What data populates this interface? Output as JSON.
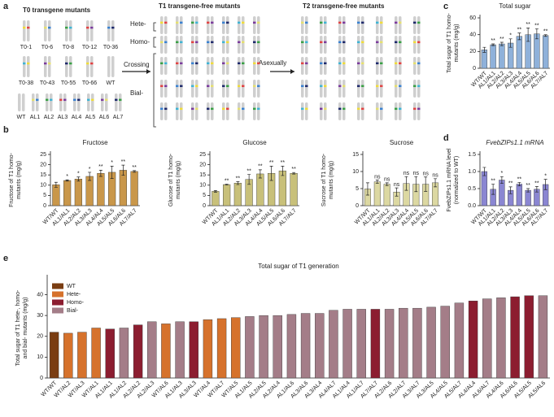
{
  "diagram": {
    "panel_label": "a",
    "headings": [
      "T0 transgene mutants",
      "T1 transgene-free mutants",
      "T2 transgene-free mutants"
    ],
    "t0_labels": [
      "T0-1",
      "T0-6",
      "T0-8",
      "T0-12",
      "T0-36",
      "T0-38",
      "T0-43",
      "T0-55",
      "T0-66",
      "WT"
    ],
    "line_labels": [
      "WT",
      "AL1",
      "AL2",
      "AL3",
      "AL4",
      "AL5",
      "AL6",
      "AL7"
    ],
    "arrows": [
      "Crossing",
      "Asexually"
    ],
    "groups": [
      "Hete-",
      "Homo-",
      "Bial-"
    ]
  },
  "chart_data": [
    {
      "type": "bar",
      "panel_label": "b",
      "title": "Fructose",
      "y_label": [
        "Fructose of T1 homo-",
        "mutants (mg/g)"
      ],
      "color": "#c9974a",
      "categories": [
        "WT/WT",
        "AL1/AL1",
        "AL2/AL2",
        "AL3/AL3",
        "AL4/AL4",
        "AL5/AL5",
        "AL6/AL6",
        "AL7/AL7"
      ],
      "values": [
        10.2,
        12.3,
        13,
        14.3,
        15.8,
        16.3,
        17.3,
        16.7
      ],
      "errors": [
        1.2,
        0.3,
        1,
        2,
        1.5,
        3,
        2.5,
        0.4
      ],
      "significance": [
        null,
        "*",
        "*",
        "*",
        "**",
        "*",
        "**",
        "**"
      ],
      "ylim": [
        0,
        25
      ],
      "yticks": [
        0,
        5,
        10,
        15,
        20,
        25
      ]
    },
    {
      "type": "bar",
      "panel_label": null,
      "title": "Glucose",
      "y_label": [
        "Glucose of T1 homo-",
        "mutants (mg/g)"
      ],
      "color": "#c8c07a",
      "categories": [
        "WT/WT",
        "AL1/AL1",
        "AL2/AL2",
        "AL3/AL3",
        "AL4/AL4",
        "AL5/AL5",
        "AL6/AL6",
        "AL7/AL7"
      ],
      "values": [
        7,
        10.3,
        11,
        12.8,
        15.5,
        15.8,
        17,
        15.8
      ],
      "errors": [
        0.4,
        0.2,
        0.7,
        2.4,
        2,
        3.5,
        2.3,
        0.4
      ],
      "significance": [
        null,
        "**",
        "**",
        "**",
        "**",
        "**",
        "**",
        "**"
      ],
      "ylim": [
        0,
        25
      ],
      "yticks": [
        0,
        5,
        10,
        15,
        20,
        25
      ]
    },
    {
      "type": "bar",
      "panel_label": null,
      "title": "Sucrose",
      "y_label": [
        "Sucrose of T1 homo-",
        "mutants (mg/g)"
      ],
      "color": "#dcd8a2",
      "categories": [
        "WT/WT",
        "AL1/AL1",
        "AL2/AL2",
        "AL3/AL3",
        "AL4/AL4",
        "AL5/AL5",
        "AL6/AL6",
        "AL7/AL7"
      ],
      "values": [
        4.9,
        7,
        6.3,
        4,
        6.5,
        6.3,
        6.3,
        6.7
      ],
      "errors": [
        1.8,
        0.5,
        0.4,
        1.2,
        2,
        2.2,
        2.1,
        1.2
      ],
      "significance": [
        null,
        "ns",
        "ns",
        "ns",
        "ns",
        "ns",
        "ns",
        "ns"
      ],
      "ylim": [
        0,
        15
      ],
      "yticks": [
        0,
        5,
        10,
        15
      ]
    },
    {
      "type": "bar",
      "panel_label": "c",
      "title": "Total sugar",
      "y_label": [
        "Total sugar of T1 homo-",
        "mutants (mg/g)"
      ],
      "color": "#8fb1da",
      "categories": [
        "WT/WT",
        "AL1/AL1",
        "AL2/AL2",
        "AL3/AL3",
        "AL4/AL4",
        "AL5/AL5",
        "AL6/AL6",
        "AL7/AL7"
      ],
      "values": [
        22,
        28,
        29,
        30,
        38,
        40,
        41,
        39
      ],
      "errors": [
        3,
        1,
        2,
        5,
        4,
        8,
        6,
        1
      ],
      "significance": [
        null,
        "**",
        "**",
        "*",
        "**",
        "**",
        "**",
        "**"
      ],
      "ylim": [
        0,
        60
      ],
      "yticks": [
        0,
        20,
        40,
        60
      ]
    },
    {
      "type": "bar",
      "panel_label": "d",
      "title": "FvebZIPs1.1 mRNA",
      "y_label": [
        "FvebZIPs1.1 mRNA level",
        "(normalized to WT)"
      ],
      "color": "#8a86d2",
      "categories": [
        "WT/WT",
        "AL1/AL1",
        "AL2/AL2",
        "AL3/AL3",
        "AL4/AL4",
        "AL5/AL5",
        "AL6/AL6",
        "AL7/AL7"
      ],
      "values": [
        1.0,
        0.48,
        0.75,
        0.45,
        0.63,
        0.45,
        0.48,
        0.62
      ],
      "errors": [
        0.12,
        0.15,
        0.1,
        0.1,
        0.05,
        0.05,
        0.08,
        0.15
      ],
      "significance": [
        null,
        "**",
        "*",
        "**",
        "**",
        "**",
        "**",
        "*"
      ],
      "ylim": [
        0,
        1.5
      ],
      "yticks": [
        {
          "value": 0,
          "label": "0.0"
        },
        {
          "value": 0.5,
          "label": "0.5"
        },
        {
          "value": 1,
          "label": "1.0"
        },
        {
          "value": 1.5,
          "label": "1.5"
        }
      ]
    },
    {
      "type": "bar",
      "panel_label": "e",
      "title": "Total sugar of T1 generation",
      "y_label": [
        "Total sugar of T1 hete-, homo-",
        "and bial- mutants (mg/g)"
      ],
      "legend": [
        {
          "name": "WT",
          "color": "#7a3d12"
        },
        {
          "name": "Hete-",
          "color": "#d6722c"
        },
        {
          "name": "Homo-",
          "color": "#8c1d30"
        },
        {
          "name": "Bial-",
          "color": "#a47d88"
        }
      ],
      "categories": [
        "WT/WT",
        "WT/AL2",
        "WT/AL3",
        "WT/AL1",
        "AL1/AL1",
        "AL1/AL2",
        "AL2/AL2",
        "AL2/AL3",
        "WT/AL6",
        "AL1/AL3",
        "AL3/AL3",
        "WT/AL4",
        "WT/AL7",
        "WT/AL5",
        "AL1/AL5",
        "AL2/AL5",
        "AL2/AL4",
        "AL1/AL6",
        "AL3/AL6",
        "AL3/AL4",
        "AL4/AL7",
        "AL1/AL4",
        "AL1/AL7",
        "AL7/AL7",
        "AL2/AL6",
        "AL2/AL7",
        "AL3/AL7",
        "AL3/AL5",
        "AL4/AL5",
        "AL5/AL7",
        "AL4/AL4",
        "AL6/AL7",
        "AL4/AL6",
        "AL6/AL6",
        "AL5/AL5",
        "AL5/AL6"
      ],
      "values": [
        22,
        21.5,
        22,
        24,
        23.5,
        24,
        25.5,
        27,
        26,
        27,
        27,
        28,
        28.5,
        29,
        29.5,
        30,
        30,
        30.5,
        31,
        31,
        32.5,
        33,
        33,
        33,
        33,
        33.5,
        33.5,
        34,
        34.5,
        36,
        37,
        38,
        38.5,
        39,
        39.5,
        39.5
      ],
      "colors": [
        "#7a3d12",
        "#d6722c",
        "#d6722c",
        "#d6722c",
        "#8c1d30",
        "#a47d88",
        "#8c1d30",
        "#a47d88",
        "#d6722c",
        "#a47d88",
        "#8c1d30",
        "#d6722c",
        "#d6722c",
        "#d6722c",
        "#a47d88",
        "#a47d88",
        "#a47d88",
        "#a47d88",
        "#a47d88",
        "#a47d88",
        "#a47d88",
        "#a47d88",
        "#a47d88",
        "#8c1d30",
        "#a47d88",
        "#a47d88",
        "#a47d88",
        "#a47d88",
        "#a47d88",
        "#a47d88",
        "#8c1d30",
        "#a47d88",
        "#a47d88",
        "#8c1d30",
        "#8c1d30",
        "#a47d88"
      ],
      "ylim": [
        0,
        48
      ],
      "yticks": [
        0,
        10,
        20,
        30,
        40
      ]
    }
  ]
}
